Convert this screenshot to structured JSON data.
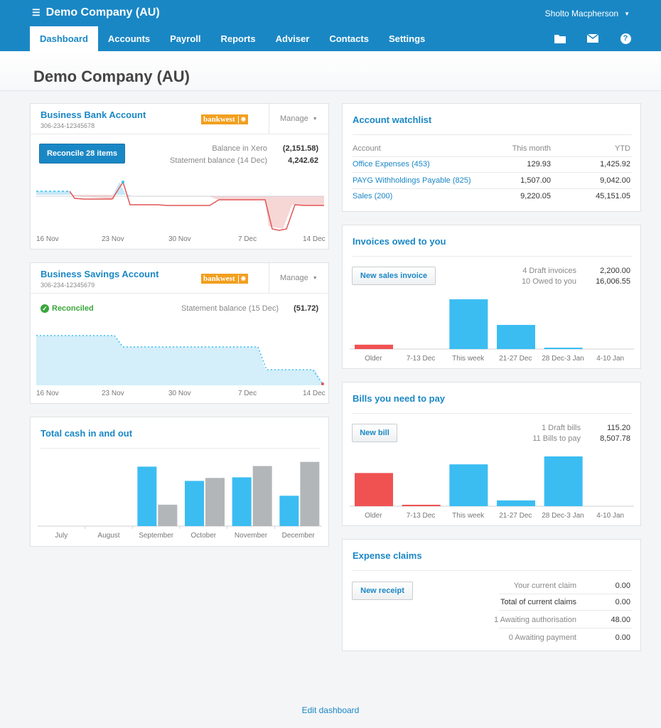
{
  "header": {
    "company": "Demo Company (AU)",
    "user": "Sholto Macpherson",
    "nav": [
      "Dashboard",
      "Accounts",
      "Payroll",
      "Reports",
      "Adviser",
      "Contacts",
      "Settings"
    ],
    "active_tab": "Dashboard",
    "tool_icons": [
      "folder-icon",
      "mail-icon",
      "help-icon"
    ],
    "help_glyph": "?"
  },
  "page": {
    "title": "Demo Company (AU)",
    "edit_link": "Edit dashboard"
  },
  "bank_account": {
    "name": "Business Bank Account",
    "number": "306-234-12345678",
    "bank_logo": "bankwest",
    "manage": "Manage",
    "reconcile_button": "Reconcile 28 items",
    "balance_label": "Balance in Xero",
    "balance_value": "(2,151.58)",
    "statement_label": "Statement balance (14 Dec)",
    "statement_value": "4,242.62",
    "x_labels": [
      "16 Nov",
      "23 Nov",
      "30 Nov",
      "7 Dec",
      "14 Dec"
    ]
  },
  "savings_account": {
    "name": "Business Savings Account",
    "number": "306-234-12345679",
    "bank_logo": "bankwest",
    "manage": "Manage",
    "status": "Reconciled",
    "statement_label": "Statement balance (15 Dec)",
    "statement_value": "(51.72)",
    "x_labels": [
      "16 Nov",
      "23 Nov",
      "30 Nov",
      "7 Dec",
      "14 Dec"
    ]
  },
  "cash_chart": {
    "title": "Total cash in and out",
    "chart_data": {
      "type": "bar",
      "categories": [
        "July",
        "August",
        "September",
        "October",
        "November",
        "December"
      ],
      "series": [
        {
          "values": [
            0,
            0,
            100,
            76,
            82,
            51
          ],
          "color": "#3bbdf2"
        },
        {
          "values": [
            0,
            0,
            36,
            81,
            101,
            108
          ],
          "color": "#b3b6b9"
        }
      ]
    }
  },
  "watchlist": {
    "title": "Account watchlist",
    "columns": [
      "Account",
      "This month",
      "YTD"
    ],
    "rows": [
      {
        "account": "Office Expenses (453)",
        "month": "129.93",
        "ytd": "1,425.92"
      },
      {
        "account": "PAYG Withholdings Payable (825)",
        "month": "1,507.00",
        "ytd": "9,042.00"
      },
      {
        "account": "Sales (200)",
        "month": "9,220.05",
        "ytd": "45,151.05"
      }
    ]
  },
  "invoices": {
    "title": "Invoices owed to you",
    "button": "New sales invoice",
    "summary": [
      {
        "label": "4 Draft invoices",
        "value": "2,200.00"
      },
      {
        "label": "10 Owed to you",
        "value": "16,006.55"
      }
    ],
    "chart_data": {
      "type": "bar",
      "categories": [
        "Older",
        "7-13 Dec",
        "This week",
        "21-27 Dec",
        "28 Dec-3 Jan",
        "4-10 Jan"
      ],
      "values": [
        6,
        0,
        68,
        33,
        1,
        0
      ],
      "colors": [
        "#f05252",
        "#3bbdf2",
        "#3bbdf2",
        "#3bbdf2",
        "#3bbdf2",
        "#3bbdf2"
      ]
    }
  },
  "bills": {
    "title": "Bills you need to pay",
    "button": "New bill",
    "summary": [
      {
        "label": "1 Draft bills",
        "value": "115.20"
      },
      {
        "label": "11 Bills to pay",
        "value": "8,507.78"
      }
    ],
    "chart_data": {
      "type": "bar",
      "categories": [
        "Older",
        "7-13 Dec",
        "This week",
        "21-27 Dec",
        "28 Dec-3 Jan",
        "4-10 Jan"
      ],
      "values": [
        46,
        2,
        58,
        8,
        69,
        0
      ],
      "colors": [
        "#f05252",
        "#f05252",
        "#3bbdf2",
        "#3bbdf2",
        "#3bbdf2",
        "#3bbdf2"
      ]
    }
  },
  "expenses": {
    "title": "Expense claims",
    "button": "New receipt",
    "rows": [
      {
        "label": "Your current claim",
        "value": "0.00",
        "bold": false
      },
      {
        "label": "Total of current claims",
        "value": "0.00",
        "bold": true
      },
      {
        "label": "1 Awaiting authorisation",
        "value": "48.00",
        "bold": false
      },
      {
        "label": "0 Awaiting payment",
        "value": "0.00",
        "bold": false
      }
    ]
  }
}
